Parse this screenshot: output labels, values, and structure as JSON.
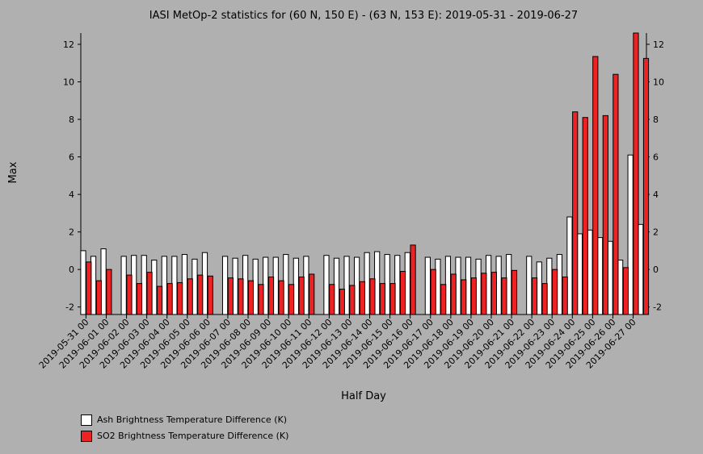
{
  "colors": {
    "background": "#b0b0b0",
    "ash": "#ffffff",
    "so2": "#ee2222",
    "axis": "#000000"
  },
  "chart_data": {
    "type": "bar",
    "title": "IASI MetOp-2 statistics for (60 N, 150 E) - (63 N, 153 E): 2019-05-31 - 2019-06-27",
    "xlabel": "Half Day",
    "ylabel": "Max",
    "ylim": [
      -2.4,
      12.6
    ],
    "yticks": [
      -2,
      0,
      2,
      4,
      6,
      8,
      10,
      12
    ],
    "grid": false,
    "legend_position": "bottom-left",
    "categories": [
      "2019-05-31 00",
      "2019-05-31 12",
      "2019-06-01 00",
      "2019-06-01 12",
      "2019-06-02 00",
      "2019-06-02 12",
      "2019-06-03 00",
      "2019-06-03 12",
      "2019-06-04 00",
      "2019-06-04 12",
      "2019-06-05 00",
      "2019-06-05 12",
      "2019-06-06 00",
      "2019-06-06 12",
      "2019-06-07 00",
      "2019-06-07 12",
      "2019-06-08 00",
      "2019-06-08 12",
      "2019-06-09 00",
      "2019-06-09 12",
      "2019-06-10 00",
      "2019-06-10 12",
      "2019-06-11 00",
      "2019-06-11 12",
      "2019-06-12 00",
      "2019-06-12 12",
      "2019-06-13 00",
      "2019-06-13 12",
      "2019-06-14 00",
      "2019-06-14 12",
      "2019-06-15 00",
      "2019-06-15 12",
      "2019-06-16 00",
      "2019-06-16 12",
      "2019-06-17 00",
      "2019-06-17 12",
      "2019-06-18 00",
      "2019-06-18 12",
      "2019-06-19 00",
      "2019-06-19 12",
      "2019-06-20 00",
      "2019-06-20 12",
      "2019-06-21 00",
      "2019-06-21 12",
      "2019-06-22 00",
      "2019-06-22 12",
      "2019-06-23 00",
      "2019-06-23 12",
      "2019-06-24 00",
      "2019-06-24 12",
      "2019-06-25 00",
      "2019-06-25 12",
      "2019-06-26 00",
      "2019-06-26 12",
      "2019-06-27 00",
      "2019-06-27 12"
    ],
    "tick_labels": [
      "2019-05-31 00",
      "2019-06-01 00",
      "2019-06-02 00",
      "2019-06-03 00",
      "2019-06-04 00",
      "2019-06-05 00",
      "2019-06-06 00",
      "2019-06-07 00",
      "2019-06-08 00",
      "2019-06-09 00",
      "2019-06-10 00",
      "2019-06-11 00",
      "2019-06-12 00",
      "2019-06-13 00",
      "2019-06-14 00",
      "2019-06-15 00",
      "2019-06-16 00",
      "2019-06-17 00",
      "2019-06-18 00",
      "2019-06-19 00",
      "2019-06-20 00",
      "2019-06-21 00",
      "2019-06-22 00",
      "2019-06-23 00",
      "2019-06-24 00",
      "2019-06-25 00",
      "2019-06-26 00",
      "2019-06-27 00"
    ],
    "series": [
      {
        "name": "Ash Brightness Temperature Difference (K)",
        "values": [
          1.0,
          0.7,
          1.1,
          null,
          0.7,
          0.75,
          0.75,
          0.5,
          0.7,
          0.7,
          0.8,
          0.55,
          0.9,
          null,
          0.7,
          0.6,
          0.75,
          0.55,
          0.65,
          0.65,
          0.8,
          0.6,
          0.7,
          null,
          0.75,
          0.6,
          0.7,
          0.65,
          0.9,
          0.95,
          0.8,
          0.75,
          0.9,
          null,
          0.65,
          0.55,
          0.7,
          0.65,
          0.65,
          0.55,
          0.75,
          0.7,
          0.8,
          null,
          0.7,
          0.4,
          0.6,
          0.8,
          2.8,
          1.9,
          2.1,
          1.7,
          1.5,
          0.5,
          6.1,
          2.4
        ]
      },
      {
        "name": "SO2 Brightness Temperature Difference (K)",
        "values": [
          0.4,
          -0.6,
          0.0,
          null,
          -0.3,
          -0.75,
          -0.15,
          -0.9,
          -0.75,
          -0.7,
          -0.5,
          -0.3,
          -0.35,
          null,
          -0.45,
          -0.5,
          -0.6,
          -0.8,
          -0.4,
          -0.6,
          -0.8,
          -0.4,
          -0.25,
          null,
          -0.8,
          -1.05,
          -0.85,
          -0.65,
          -0.5,
          -0.75,
          -0.75,
          -0.1,
          1.3,
          null,
          0.0,
          -0.8,
          -0.25,
          -0.55,
          -0.45,
          -0.2,
          -0.15,
          -0.45,
          -0.05,
          null,
          -0.45,
          -0.75,
          0.0,
          -0.4,
          8.4,
          8.1,
          11.35,
          8.2,
          10.4,
          0.1,
          12.6,
          11.25
        ]
      }
    ]
  }
}
